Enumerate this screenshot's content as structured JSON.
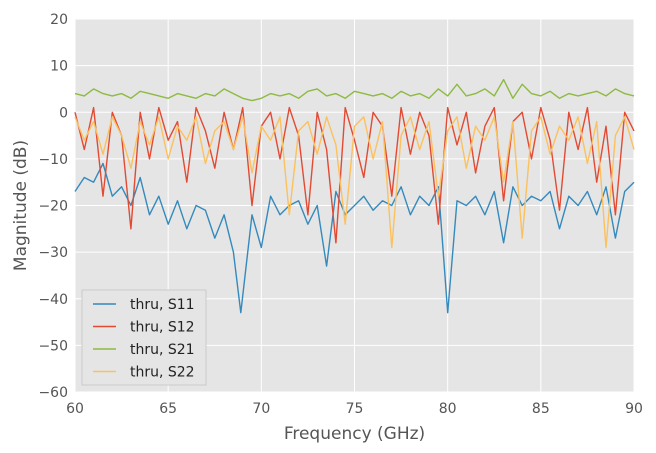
{
  "chart_data": {
    "type": "line",
    "title": "",
    "xlabel": "Frequency (GHz)",
    "ylabel": "Magnitude (dB)",
    "xlim": [
      60,
      90
    ],
    "ylim": [
      -60,
      20
    ],
    "xticks": [
      60,
      65,
      70,
      75,
      80,
      85,
      90
    ],
    "yticks": [
      -60,
      -50,
      -40,
      -30,
      -20,
      -10,
      0,
      10,
      20
    ],
    "grid": true,
    "legend_position": "lower-left",
    "background_color": "#e5e5e5",
    "series": [
      {
        "name": "thru, S11",
        "color": "#348abd",
        "x": [
          60.0,
          60.5,
          61.0,
          61.5,
          62.0,
          62.5,
          63.0,
          63.5,
          64.0,
          64.5,
          65.0,
          65.5,
          66.0,
          66.5,
          67.0,
          67.5,
          68.0,
          68.5,
          68.9,
          69.5,
          70.0,
          70.5,
          71.0,
          71.5,
          72.0,
          72.5,
          73.0,
          73.5,
          74.0,
          74.5,
          75.0,
          75.5,
          76.0,
          76.5,
          77.0,
          77.5,
          78.0,
          78.5,
          79.0,
          79.5,
          80.0,
          80.5,
          81.0,
          81.5,
          82.0,
          82.5,
          83.0,
          83.5,
          84.0,
          84.5,
          85.0,
          85.5,
          86.0,
          86.5,
          87.0,
          87.5,
          88.0,
          88.5,
          89.0,
          89.5,
          90.0
        ],
        "y": [
          -17,
          -14,
          -15,
          -11,
          -18,
          -16,
          -20,
          -14,
          -22,
          -18,
          -24,
          -19,
          -25,
          -20,
          -21,
          -27,
          -22,
          -30,
          -43,
          -22,
          -29,
          -18,
          -22,
          -20,
          -19,
          -24,
          -20,
          -33,
          -17,
          -22,
          -20,
          -18,
          -21,
          -19,
          -20,
          -16,
          -22,
          -18,
          -20,
          -16,
          -43,
          -19,
          -20,
          -18,
          -22,
          -17,
          -28,
          -16,
          -20,
          -18,
          -19,
          -17,
          -25,
          -18,
          -20,
          -17,
          -22,
          -16,
          -27,
          -17,
          -15
        ]
      },
      {
        "name": "thru, S12",
        "color": "#e24a33",
        "x": [
          60.0,
          60.5,
          61.0,
          61.5,
          62.0,
          62.5,
          63.0,
          63.5,
          64.0,
          64.5,
          65.0,
          65.5,
          66.0,
          66.5,
          67.0,
          67.5,
          68.0,
          68.5,
          69.0,
          69.5,
          70.0,
          70.5,
          71.0,
          71.5,
          72.0,
          72.5,
          73.0,
          73.5,
          74.0,
          74.5,
          75.0,
          75.5,
          76.0,
          76.5,
          77.0,
          77.5,
          78.0,
          78.5,
          79.0,
          79.5,
          80.0,
          80.5,
          81.0,
          81.5,
          82.0,
          82.5,
          83.0,
          83.5,
          84.0,
          84.5,
          85.0,
          85.5,
          86.0,
          86.5,
          87.0,
          87.5,
          88.0,
          88.5,
          89.0,
          89.5,
          90.0
        ],
        "y": [
          0,
          -8,
          1,
          -18,
          0,
          -5,
          -25,
          0,
          -10,
          1,
          -6,
          -2,
          -15,
          1,
          -4,
          -12,
          0,
          -8,
          1,
          -20,
          -3,
          0,
          -10,
          1,
          -5,
          -22,
          0,
          -8,
          -28,
          1,
          -6,
          -14,
          0,
          -3,
          -18,
          1,
          -9,
          0,
          -5,
          -24,
          1,
          -7,
          0,
          -13,
          -3,
          1,
          -19,
          -2,
          0,
          -10,
          1,
          -6,
          -21,
          0,
          -8,
          1,
          -15,
          -3,
          -22,
          0,
          -4
        ]
      },
      {
        "name": "thru, S21",
        "color": "#8eba42",
        "x": [
          60.0,
          60.5,
          61.0,
          61.5,
          62.0,
          62.5,
          63.0,
          63.5,
          64.0,
          64.5,
          65.0,
          65.5,
          66.0,
          66.5,
          67.0,
          67.5,
          68.0,
          68.5,
          69.0,
          69.5,
          70.0,
          70.5,
          71.0,
          71.5,
          72.0,
          72.5,
          73.0,
          73.5,
          74.0,
          74.5,
          75.0,
          75.5,
          76.0,
          76.5,
          77.0,
          77.5,
          78.0,
          78.5,
          79.0,
          79.5,
          80.0,
          80.5,
          81.0,
          81.5,
          82.0,
          82.5,
          83.0,
          83.5,
          84.0,
          84.5,
          85.0,
          85.5,
          86.0,
          86.5,
          87.0,
          87.5,
          88.0,
          88.5,
          89.0,
          89.5,
          90.0
        ],
        "y": [
          4,
          3.5,
          5,
          4,
          3.5,
          4,
          3,
          4.5,
          4,
          3.5,
          3,
          4,
          3.5,
          3,
          4,
          3.5,
          5,
          4,
          3,
          2.5,
          3,
          4,
          3.5,
          4,
          3,
          4.5,
          5,
          3.5,
          4,
          3,
          4.5,
          4,
          3.5,
          4,
          3,
          4.5,
          3.5,
          4,
          3,
          5,
          3.5,
          6,
          3.5,
          4,
          5,
          3.5,
          7,
          3,
          6,
          4,
          3.5,
          4.5,
          3,
          4,
          3.5,
          4,
          4.5,
          3.5,
          5,
          4,
          3.5
        ]
      },
      {
        "name": "thru, S22",
        "color": "#fbc15e",
        "x": [
          60.0,
          60.5,
          61.0,
          61.5,
          62.0,
          62.5,
          63.0,
          63.5,
          64.0,
          64.5,
          65.0,
          65.5,
          66.0,
          66.5,
          67.0,
          67.5,
          68.0,
          68.5,
          69.0,
          69.5,
          70.0,
          70.5,
          71.0,
          71.5,
          72.0,
          72.5,
          73.0,
          73.5,
          74.0,
          74.5,
          75.0,
          75.5,
          76.0,
          76.5,
          77.0,
          77.5,
          78.0,
          78.5,
          79.0,
          79.5,
          80.0,
          80.5,
          81.0,
          81.5,
          82.0,
          82.5,
          83.0,
          83.5,
          84.0,
          84.5,
          85.0,
          85.5,
          86.0,
          86.5,
          87.0,
          87.5,
          88.0,
          88.5,
          89.0,
          89.5,
          90.0
        ],
        "y": [
          -1,
          -6,
          -2,
          -9,
          -1,
          -5,
          -12,
          -2,
          -7,
          -1,
          -10,
          -3,
          -6,
          -1,
          -11,
          -4,
          -2,
          -8,
          -1,
          -13,
          -3,
          -6,
          -1,
          -22,
          -4,
          -2,
          -9,
          -1,
          -7,
          -24,
          -3,
          -1,
          -10,
          -2,
          -29,
          -5,
          -1,
          -8,
          -2,
          -18,
          -4,
          -1,
          -12,
          -3,
          -6,
          -1,
          -15,
          -2,
          -27,
          -4,
          -1,
          -9,
          -3,
          -6,
          -1,
          -11,
          -2,
          -29,
          -5,
          -1,
          -8
        ]
      }
    ]
  }
}
